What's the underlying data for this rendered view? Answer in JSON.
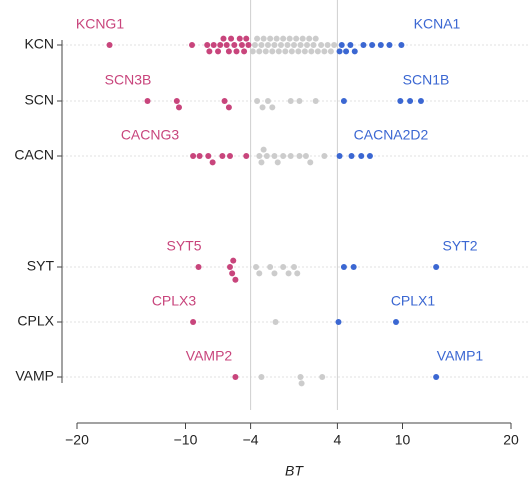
{
  "chart_data": {
    "type": "strip",
    "x_label": "BT",
    "categories": [
      "KCN",
      "SCN",
      "CACN",
      "SYT",
      "CPLX",
      "VAMP"
    ],
    "values": [
      [
        -17,
        -9.4,
        -8,
        -7.8,
        -7.4,
        -7,
        -6.8,
        -6.5,
        -6.2,
        -6,
        -5.8,
        -5.5,
        -5.3,
        -5,
        -4.8,
        -4.6,
        -4.4,
        -4.2,
        -3.8,
        -3.6,
        -3.4,
        -3.2,
        -3,
        -2.8,
        -2.6,
        -2.4,
        -2.2,
        -2,
        -1.8,
        -1.6,
        -1.4,
        -1.2,
        -1,
        -0.8,
        -0.6,
        -0.4,
        -0.2,
        0,
        0.2,
        0.4,
        0.6,
        0.8,
        1,
        1.2,
        1.4,
        1.6,
        1.8,
        2,
        2.2,
        2.5,
        2.8,
        3.1,
        3.4,
        3.7,
        4.2,
        4.4,
        4.8,
        5.2,
        5.6,
        6.4,
        7.2,
        8,
        8.8,
        9.9
      ],
      [
        -13.5,
        -10.8,
        -10.6,
        -6.4,
        -6,
        -3.4,
        -2.9,
        -2.4,
        -2,
        -0.3,
        0.5,
        2,
        4.6,
        9.8,
        10.7,
        11.7
      ],
      [
        -9.3,
        -8.7,
        -7.9,
        -7.5,
        -6.6,
        -5.9,
        -4.4,
        -3.2,
        -3,
        -2.8,
        -2.5,
        -1.8,
        -1.5,
        -1,
        -0.3,
        0.5,
        1.1,
        1.5,
        2.8,
        4.2,
        5.3,
        6.2,
        7
      ],
      [
        -8.8,
        -5.9,
        -5.7,
        -5.6,
        -5.4,
        -3.5,
        -3.2,
        -2.2,
        -1.8,
        -1,
        -0.5,
        0,
        0.3,
        4.6,
        5.5,
        13.1
      ],
      [
        -9.3,
        -1.7,
        4.1,
        9.4
      ],
      [
        -5.4,
        -3,
        0.6,
        0.7,
        2.6,
        13.1
      ]
    ],
    "labels": [
      {
        "left": "KCNG1",
        "right": "KCNA1"
      },
      {
        "left": "SCN3B",
        "right": "SCN1B"
      },
      {
        "left": "CACNG3",
        "right": "CACNA2D2"
      },
      {
        "left": "SYT5",
        "right": "SYT2"
      },
      {
        "left": "CPLX3",
        "right": "CPLX1"
      },
      {
        "left": "VAMP2",
        "right": "VAMP1"
      }
    ],
    "vlines": [
      -4,
      4
    ],
    "colors": {
      "low": "#c8457c",
      "mid": "#cccccc",
      "high": "#3b67d2"
    },
    "xlim": [
      -20,
      20
    ],
    "xticks": [
      {
        "value": -20,
        "label": "−20"
      },
      {
        "value": -10,
        "label": "−10"
      },
      {
        "value": -4,
        "label": "−4"
      },
      4,
      10,
      20
    ]
  }
}
